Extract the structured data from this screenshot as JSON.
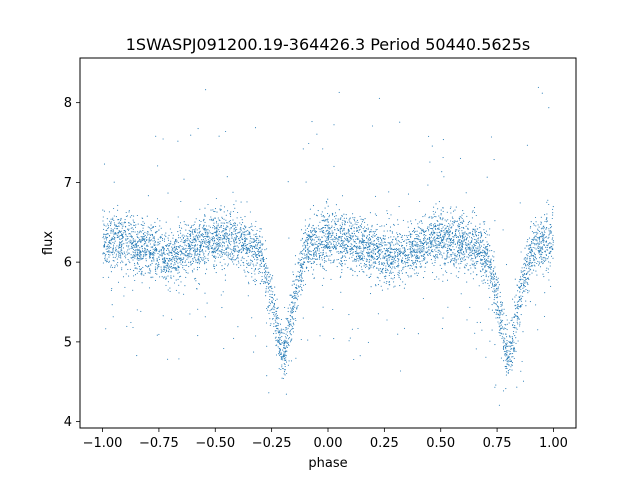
{
  "chart_data": {
    "type": "scatter",
    "title": "1SWASPJ091200.19-364426.3 Period 50440.5625s",
    "xlabel": "phase",
    "ylabel": "flux",
    "xlim": [
      -1.1,
      1.1
    ],
    "ylim": [
      3.92,
      8.56
    ],
    "xticks": [
      -1.0,
      -0.75,
      -0.5,
      -0.25,
      0.0,
      0.25,
      0.5,
      0.75,
      1.0
    ],
    "xtick_labels": [
      "−1.00",
      "−0.75",
      "−0.50",
      "−0.25",
      "0.00",
      "0.25",
      "0.50",
      "0.75",
      "1.00"
    ],
    "yticks": [
      4,
      5,
      6,
      7,
      8
    ],
    "ytick_labels": [
      "4",
      "5",
      "6",
      "7",
      "8"
    ],
    "grid": false,
    "marker_color": "#1f77b4",
    "series": [
      {
        "x_range": [
          -1.0,
          1.0
        ],
        "baseline_flux": 6.28,
        "secondary_minimum": {
          "phase": 0.3,
          "flux": 6.05
        },
        "primary_minimum": {
          "phase": 0.8,
          "flux": 4.75
        },
        "scatter": 0.17,
        "profile": [
          {
            "x": -1.0,
            "y": 6.25
          },
          {
            "x": -0.9,
            "y": 6.28
          },
          {
            "x": -0.8,
            "y": 6.15
          },
          {
            "x": -0.7,
            "y": 6.05
          },
          {
            "x": -0.6,
            "y": 6.2
          },
          {
            "x": -0.5,
            "y": 6.3
          },
          {
            "x": -0.4,
            "y": 6.28
          },
          {
            "x": -0.3,
            "y": 6.1
          },
          {
            "x": -0.25,
            "y": 5.55
          },
          {
            "x": -0.2,
            "y": 4.75
          },
          {
            "x": -0.15,
            "y": 5.55
          },
          {
            "x": -0.1,
            "y": 6.15
          },
          {
            "x": 0.0,
            "y": 6.3
          },
          {
            "x": 0.1,
            "y": 6.25
          },
          {
            "x": 0.2,
            "y": 6.15
          },
          {
            "x": 0.3,
            "y": 6.05
          },
          {
            "x": 0.4,
            "y": 6.2
          },
          {
            "x": 0.5,
            "y": 6.3
          },
          {
            "x": 0.6,
            "y": 6.28
          },
          {
            "x": 0.7,
            "y": 6.1
          },
          {
            "x": 0.75,
            "y": 5.55
          },
          {
            "x": 0.8,
            "y": 4.75
          },
          {
            "x": 0.85,
            "y": 5.55
          },
          {
            "x": 0.9,
            "y": 6.15
          },
          {
            "x": 1.0,
            "y": 6.3
          }
        ]
      }
    ]
  }
}
